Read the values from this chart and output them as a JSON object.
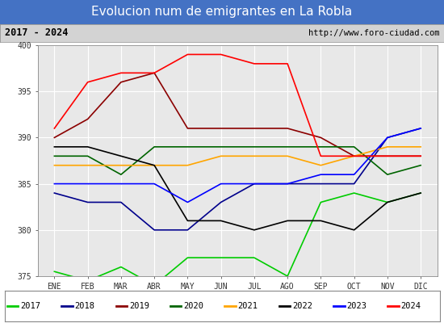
{
  "title": "Evolucion num de emigrantes en La Robla",
  "subtitle_left": "2017 - 2024",
  "subtitle_right": "http://www.foro-ciudad.com",
  "months": [
    "ENE",
    "FEB",
    "MAR",
    "ABR",
    "MAY",
    "JUN",
    "JUL",
    "AGO",
    "SEP",
    "OCT",
    "NOV",
    "DIC"
  ],
  "ylim": [
    375,
    400
  ],
  "yticks": [
    375,
    380,
    385,
    390,
    395,
    400
  ],
  "series": {
    "2017": {
      "color": "#00cc00",
      "data": [
        375.5,
        374.5,
        376,
        374,
        377,
        377,
        377,
        375,
        383,
        384,
        383,
        384
      ]
    },
    "2018": {
      "color": "#00008B",
      "data": [
        384,
        383,
        383,
        380,
        380,
        383,
        385,
        385,
        385,
        385,
        390,
        391
      ]
    },
    "2019": {
      "color": "#8B0000",
      "data": [
        390,
        392,
        396,
        397,
        391,
        391,
        391,
        391,
        390,
        388,
        388,
        388
      ]
    },
    "2020": {
      "color": "#006400",
      "data": [
        388,
        388,
        386,
        389,
        389,
        389,
        389,
        389,
        389,
        389,
        386,
        387
      ]
    },
    "2021": {
      "color": "#FFA500",
      "data": [
        387,
        387,
        387,
        387,
        387,
        388,
        388,
        388,
        387,
        388,
        389,
        389
      ]
    },
    "2022": {
      "color": "#000000",
      "data": [
        389,
        389,
        388,
        387,
        381,
        381,
        380,
        381,
        381,
        380,
        383,
        384
      ]
    },
    "2023": {
      "color": "#0000FF",
      "data": [
        385,
        385,
        385,
        385,
        383,
        385,
        385,
        385,
        386,
        386,
        390,
        391
      ]
    },
    "2024": {
      "color": "#FF0000",
      "data": [
        391,
        396,
        397,
        397,
        399,
        399,
        398,
        398,
        388,
        388,
        388,
        388
      ]
    }
  },
  "legend_order": [
    "2017",
    "2018",
    "2019",
    "2020",
    "2021",
    "2022",
    "2023",
    "2024"
  ],
  "title_bgcolor": "#4472C4",
  "title_fgcolor": "#FFFFFF",
  "plot_bgcolor": "#E8E8E8",
  "grid_color": "#FFFFFF",
  "subtitle_bgcolor": "#D3D3D3",
  "border_color": "#AAAAAA"
}
